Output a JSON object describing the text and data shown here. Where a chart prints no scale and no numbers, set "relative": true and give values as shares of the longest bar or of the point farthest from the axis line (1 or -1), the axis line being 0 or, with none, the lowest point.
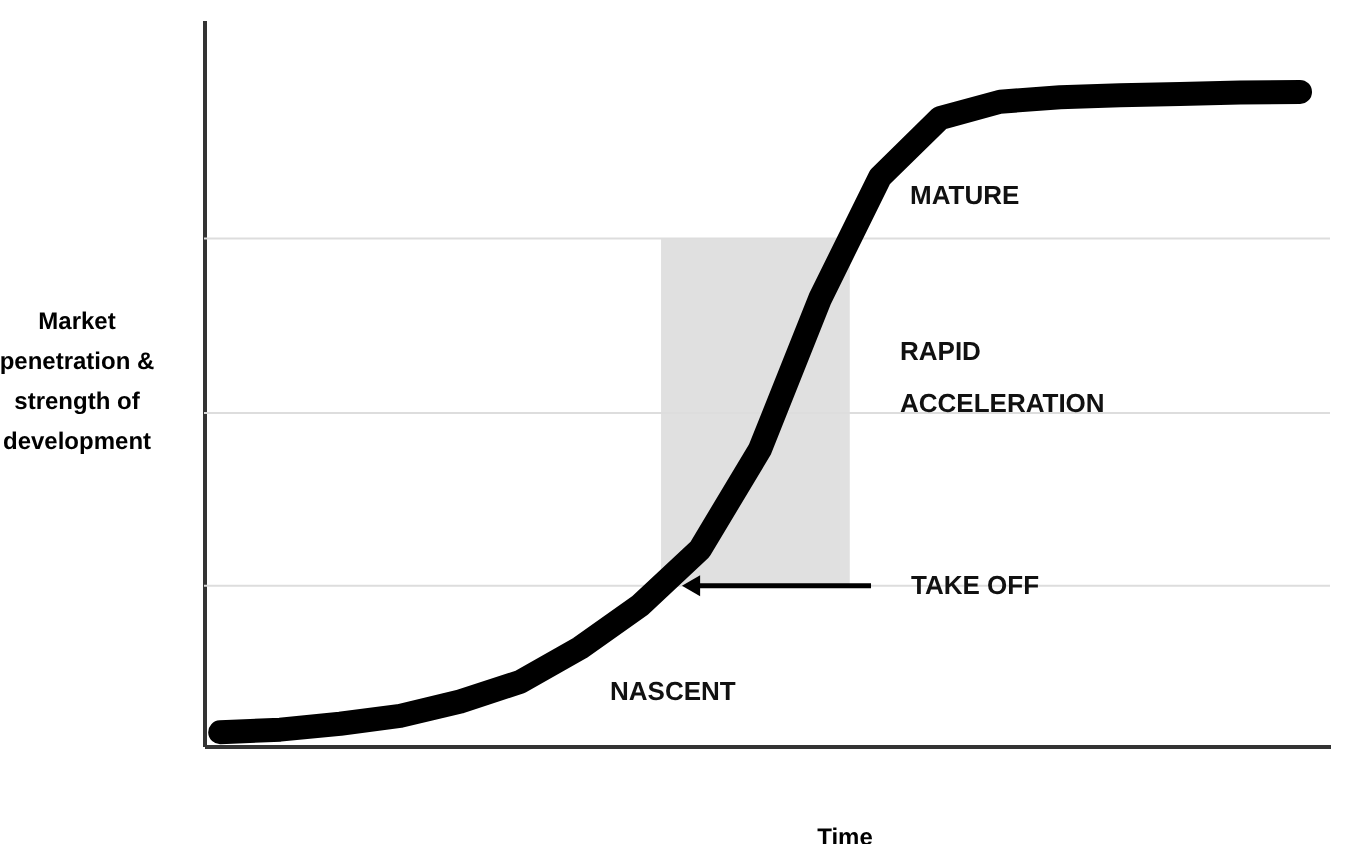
{
  "chart_data": {
    "type": "line",
    "relative": true,
    "xlabel": "Time",
    "ylabel": "Market\npenetration &\nstrength of\ndevelopment",
    "categories": [
      null,
      null,
      null,
      null,
      null,
      null,
      null,
      null,
      null,
      null,
      null,
      null,
      null,
      null,
      null,
      null,
      null,
      null,
      null
    ],
    "tick_labels": false,
    "grid": false,
    "line_style": "solid",
    "series": [
      {
        "color": "#000000",
        "values": [
          0.021,
          0.025,
          0.034,
          0.046,
          0.068,
          0.098,
          0.15,
          0.215,
          0.301,
          0.454,
          0.684,
          0.87,
          0.96,
          0.985,
          0.992,
          0.995,
          0.997,
          0.999,
          1
        ]
      }
    ],
    "ref_lines": [
      {
        "axis": "y",
        "value": 0.245,
        "color": "#dddddd"
      },
      {
        "axis": "y",
        "value": 0.509,
        "color": "#dddddd"
      },
      {
        "axis": "y",
        "value": 0.776,
        "color": "#dddddd"
      }
    ],
    "bands": [
      {
        "axis": "y",
        "from": 0.245,
        "to": 0.776,
        "color": "#e0e0e0"
      }
    ],
    "annotations": [
      "MATURE",
      "RAPID\nACCELERATION",
      "NASCENT",
      {
        "text": "TAKE OFF",
        "y": 0.245
      }
    ]
  }
}
